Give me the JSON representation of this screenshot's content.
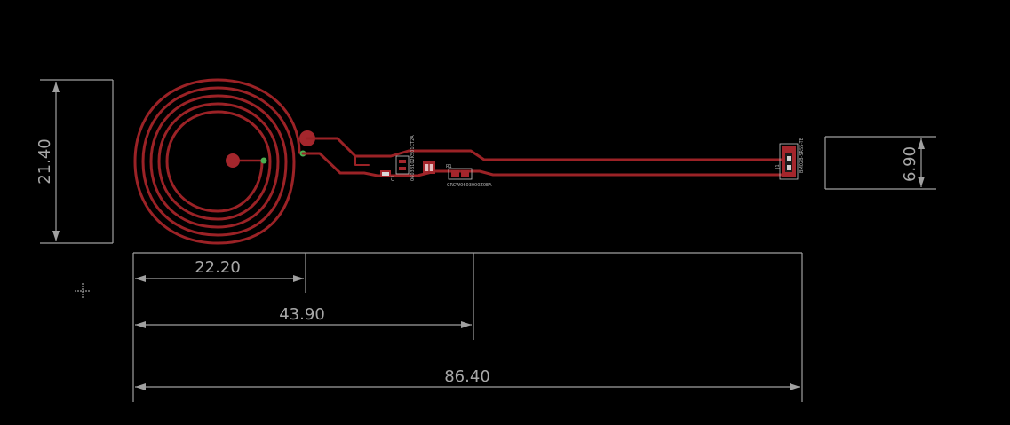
{
  "dimensions": {
    "coil_height": "21.40",
    "connector_height": "6.90",
    "coil_width": "22.20",
    "coil_to_parts": "43.90",
    "total_length": "86.40"
  },
  "components": {
    "c1": "C1",
    "ic1_part": "0603B102K501CT2A",
    "ic2_part": "CRCW0603000Z0EA",
    "r1": "R1",
    "connector_part": "BM02B-SRSS-TB",
    "j1": "J1"
  },
  "colors": {
    "background": "#000000",
    "copper": "#9b2226",
    "dimension": "#a0a0a0",
    "via": "#4caf50"
  }
}
